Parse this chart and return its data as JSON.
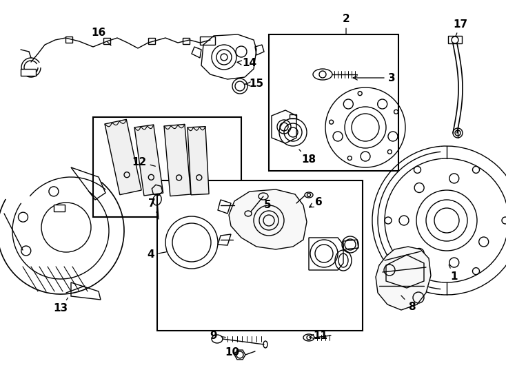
{
  "bg_color": "#ffffff",
  "fig_width": 7.34,
  "fig_height": 5.4,
  "dpi": 100,
  "lw": 1.0,
  "boxes": {
    "b12": [
      135,
      170,
      215,
      145
    ],
    "b2": [
      390,
      50,
      188,
      198
    ],
    "b4": [
      228,
      262,
      298,
      218
    ]
  },
  "labels": [
    [
      "1",
      659,
      402,
      650,
      382,
      false
    ],
    [
      "2",
      502,
      28,
      502,
      52,
      false
    ],
    [
      "3",
      568,
      113,
      508,
      113,
      true
    ],
    [
      "4",
      219,
      370,
      245,
      365,
      false
    ],
    [
      "5",
      388,
      298,
      378,
      313,
      false
    ],
    [
      "6",
      462,
      293,
      445,
      303,
      true
    ],
    [
      "7",
      220,
      295,
      228,
      310,
      false
    ],
    [
      "8",
      597,
      445,
      580,
      427,
      false
    ],
    [
      "9",
      310,
      487,
      330,
      490,
      false
    ],
    [
      "10",
      337,
      512,
      348,
      512,
      false
    ],
    [
      "11",
      465,
      487,
      445,
      490,
      true
    ],
    [
      "12",
      202,
      235,
      228,
      242,
      false
    ],
    [
      "13",
      88,
      448,
      100,
      430,
      false
    ],
    [
      "14",
      362,
      92,
      340,
      90,
      true
    ],
    [
      "15",
      372,
      122,
      353,
      122,
      true
    ],
    [
      "16",
      143,
      48,
      163,
      68,
      false
    ],
    [
      "17",
      668,
      35,
      660,
      55,
      false
    ],
    [
      "18",
      448,
      232,
      432,
      215,
      false
    ]
  ]
}
